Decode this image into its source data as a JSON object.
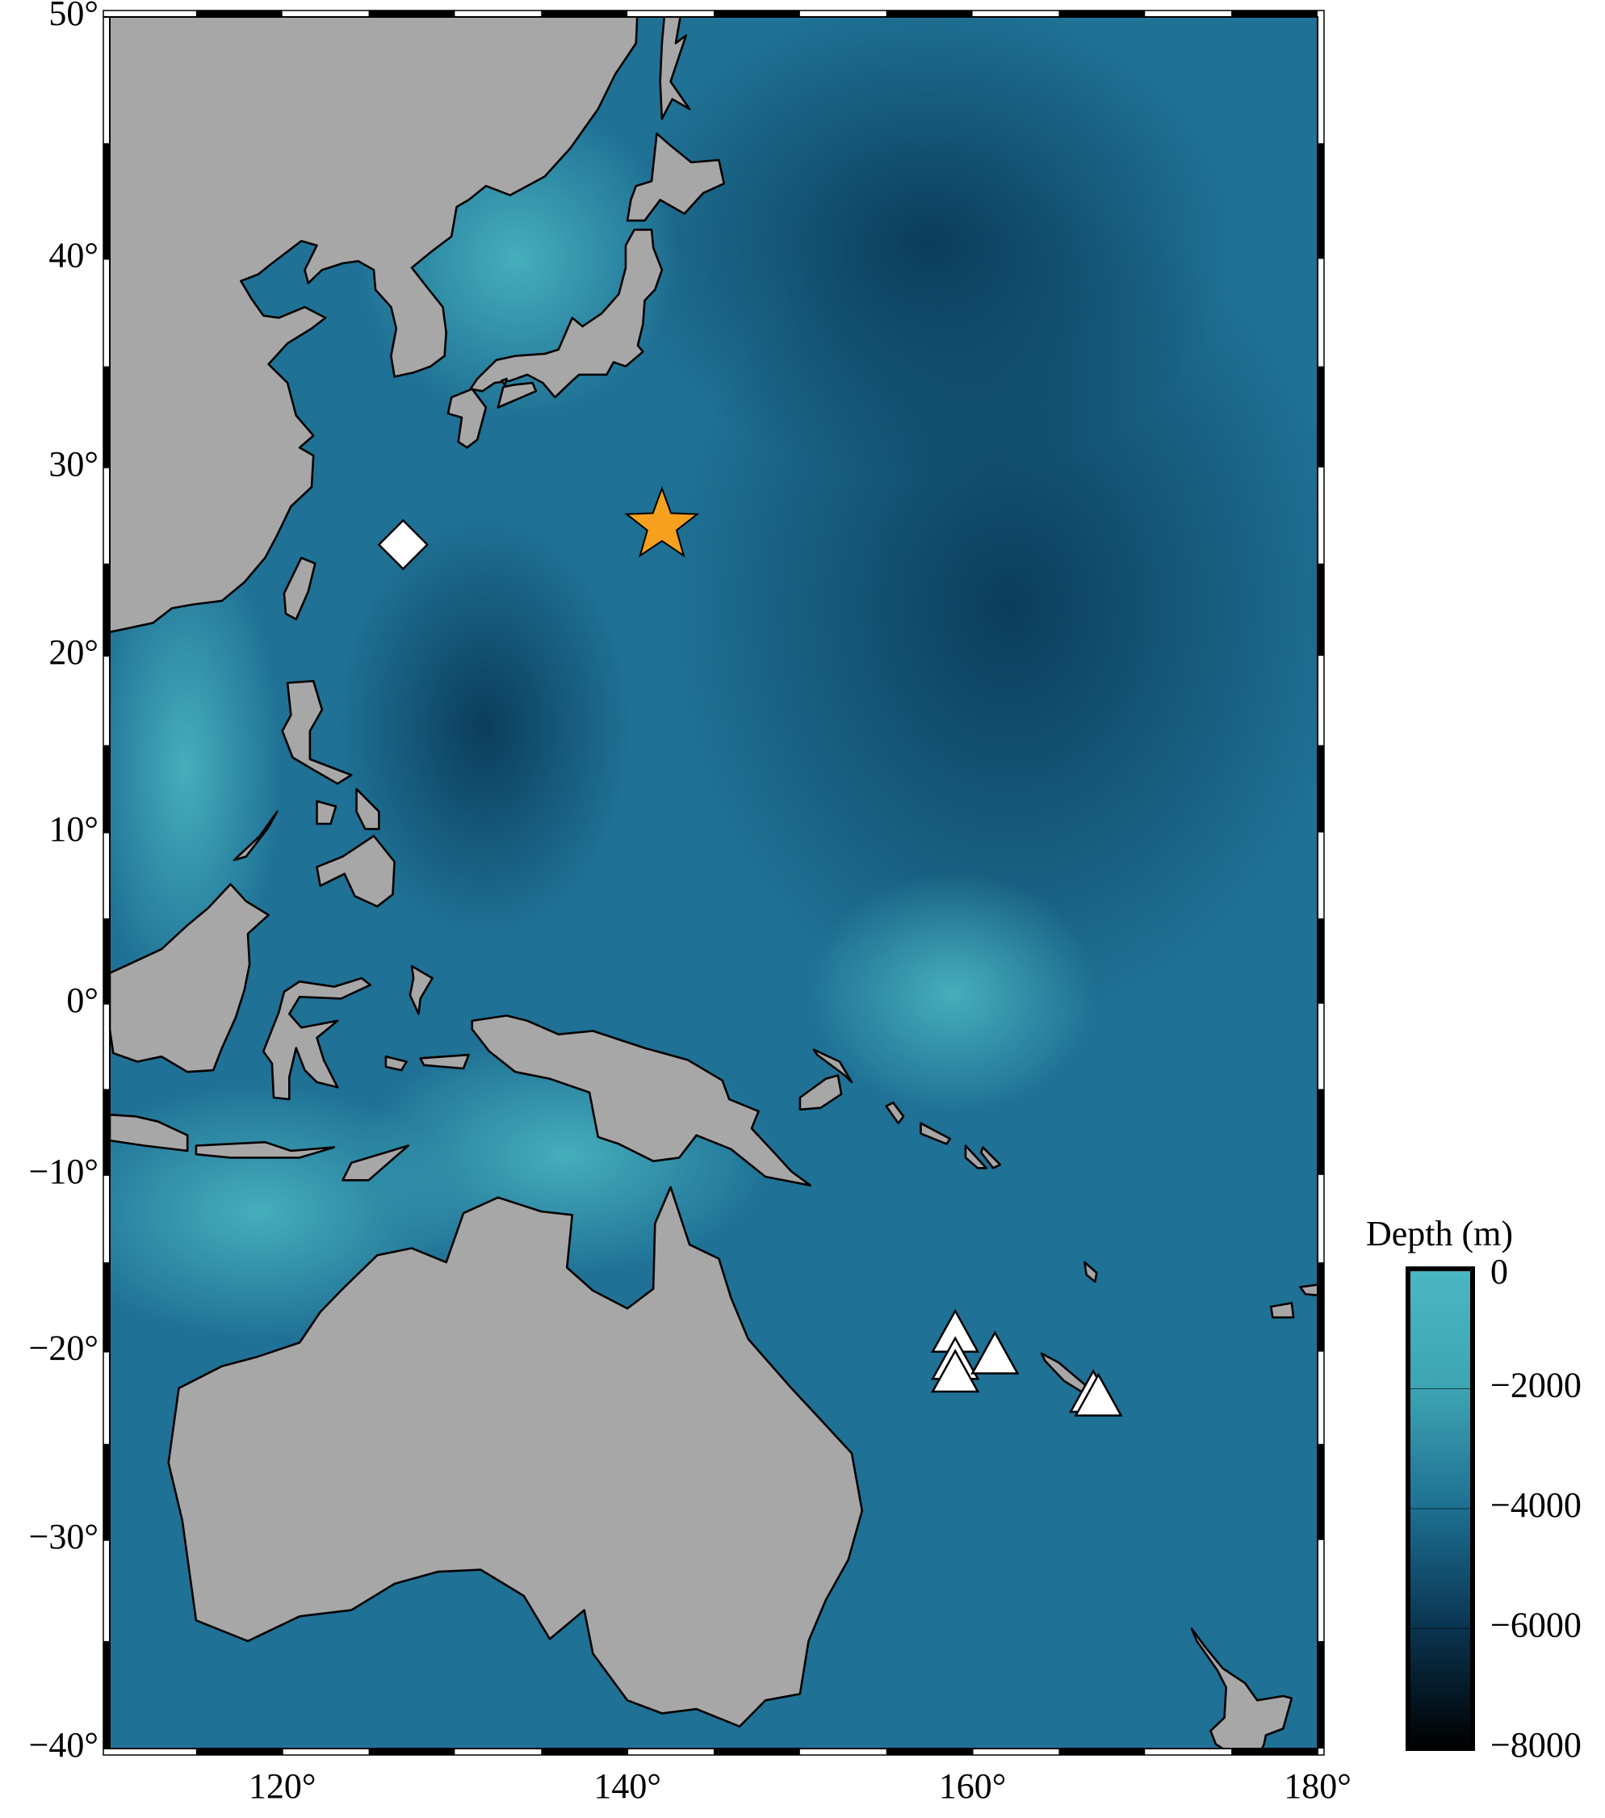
{
  "chart_data": {
    "type": "map",
    "projection": "mercator",
    "xlim": [
      110,
      180
    ],
    "ylim": [
      -40,
      50
    ],
    "xticks": [
      {
        "value": 120,
        "label": "120°"
      },
      {
        "value": 140,
        "label": "140°"
      },
      {
        "value": 160,
        "label": "160°"
      },
      {
        "value": 180,
        "label": "180°"
      }
    ],
    "yticks": [
      {
        "value": 50,
        "label": "50°"
      },
      {
        "value": 40,
        "label": "40°"
      },
      {
        "value": 30,
        "label": "30°"
      },
      {
        "value": 20,
        "label": "20°"
      },
      {
        "value": 10,
        "label": "10°"
      },
      {
        "value": 0,
        "label": "0°"
      },
      {
        "value": -10,
        "label": "−10°"
      },
      {
        "value": -20,
        "label": "−20°"
      },
      {
        "value": -30,
        "label": "−30°"
      },
      {
        "value": -40,
        "label": "−40°"
      }
    ],
    "markers": {
      "star": {
        "color": "#f5a01e",
        "points": [
          {
            "lon": 142,
            "lat": 27
          }
        ]
      },
      "diamond": {
        "color": "#ffffff",
        "points": [
          {
            "lon": 127,
            "lat": 26
          }
        ]
      },
      "triangle": {
        "color": "#ffffff",
        "points": [
          {
            "lon": 159,
            "lat": -19
          },
          {
            "lon": 159,
            "lat": -20.5
          },
          {
            "lon": 159,
            "lat": -21.2
          },
          {
            "lon": 161.3,
            "lat": -20.2
          },
          {
            "lon": 167,
            "lat": -22.3
          },
          {
            "lon": 167.3,
            "lat": -22.5
          }
        ]
      }
    },
    "colorbar": {
      "title": "Depth (m)",
      "lim": [
        -8000,
        0
      ],
      "ticks": [
        0,
        {
          "value": -2000,
          "label": "−2000"
        },
        {
          "value": -4000,
          "label": "−4000"
        },
        {
          "value": -6000,
          "label": "−6000"
        },
        {
          "value": -8000,
          "label": "−8000"
        }
      ],
      "colors": [
        "#4bb7c2",
        "#3ea4b3",
        "#1d6f91",
        "#0a3450",
        "#000000"
      ]
    }
  }
}
